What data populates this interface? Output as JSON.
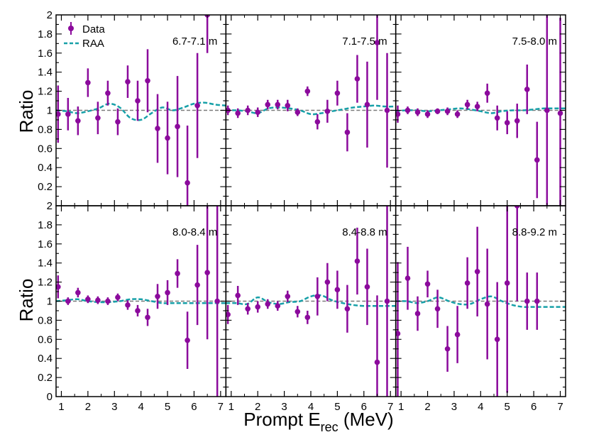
{
  "figure": {
    "ylabel": "Ratio",
    "xlabel": "Prompt E",
    "xlabel_sub": "rec",
    "xlabel_unit": " (MeV)",
    "legend": {
      "data_label": "Data",
      "model_label": "RAA"
    }
  },
  "colors": {
    "data": "#8b0a9c",
    "model": "#17a0a8",
    "reference": "#7a7a7a"
  },
  "chart_data": [
    {
      "type": "scatter",
      "title": "6.7-7.1 m",
      "xlabel": "Prompt E_rec (MeV)",
      "ylabel": "Ratio",
      "xlim": [
        0.8,
        7.2
      ],
      "ylim": [
        0,
        2
      ],
      "x": [
        0.875,
        1.25,
        1.625,
        2.0,
        2.375,
        2.75,
        3.125,
        3.5,
        3.875,
        4.25,
        4.625,
        5.0,
        5.375,
        5.75,
        6.125,
        6.5
      ],
      "series": [
        {
          "name": "Data",
          "values": [
            0.96,
            0.96,
            0.89,
            1.29,
            0.92,
            1.18,
            0.88,
            1.3,
            1.1,
            1.31,
            0.81,
            0.71,
            0.83,
            0.24,
            1.05,
            2.0
          ],
          "err": [
            0.3,
            0.17,
            0.15,
            0.15,
            0.17,
            0.13,
            0.14,
            0.17,
            0.21,
            0.33,
            0.36,
            0.38,
            0.53,
            0.6,
            0.55,
            0.4
          ]
        },
        {
          "name": "RAA",
          "x": [
            0.8,
            1.2,
            1.6,
            2.0,
            2.4,
            2.8,
            3.2,
            3.6,
            4.0,
            4.4,
            4.8,
            5.2,
            5.6,
            6.0,
            6.4,
            6.8,
            7.2
          ],
          "values": [
            1.0,
            0.99,
            0.97,
            0.99,
            1.02,
            1.07,
            1.03,
            0.92,
            0.9,
            0.97,
            1.03,
            1.0,
            1.03,
            1.07,
            1.08,
            1.06,
            1.05
          ]
        }
      ]
    },
    {
      "type": "scatter",
      "title": "7.1-7.5 m",
      "xlabel": "Prompt E_rec (MeV)",
      "ylabel": "Ratio",
      "xlim": [
        0.8,
        7.2
      ],
      "ylim": [
        0,
        2
      ],
      "x": [
        0.875,
        1.25,
        1.625,
        2.0,
        2.375,
        2.75,
        3.125,
        3.5,
        3.875,
        4.25,
        4.625,
        5.0,
        5.375,
        5.75,
        6.125,
        6.5,
        6.875
      ],
      "series": [
        {
          "name": "Data",
          "values": [
            1.0,
            0.97,
            1.0,
            0.98,
            1.06,
            1.06,
            1.05,
            0.98,
            1.2,
            0.88,
            0.99,
            1.18,
            0.77,
            1.33,
            1.06,
            1.71,
            1.0
          ],
          "err": [
            0.05,
            0.05,
            0.05,
            0.05,
            0.05,
            0.05,
            0.06,
            0.04,
            0.05,
            0.08,
            0.12,
            0.13,
            0.2,
            0.25,
            0.45,
            0.6,
            0.6
          ]
        },
        {
          "name": "RAA",
          "x": [
            0.8,
            1.2,
            1.6,
            2.0,
            2.4,
            2.8,
            3.2,
            3.6,
            4.0,
            4.4,
            4.8,
            5.2,
            5.6,
            6.0,
            6.4,
            6.8,
            7.2
          ],
          "values": [
            1.0,
            1.0,
            0.99,
            0.97,
            1.02,
            1.03,
            1.02,
            1.0,
            0.96,
            0.97,
            0.99,
            1.01,
            1.03,
            1.04,
            1.05,
            1.04,
            1.04
          ]
        }
      ]
    },
    {
      "type": "scatter",
      "title": "7.5-8.0 m",
      "xlabel": "Prompt E_rec (MeV)",
      "ylabel": "Ratio",
      "xlim": [
        0.8,
        7.2
      ],
      "ylim": [
        0,
        2
      ],
      "x": [
        0.875,
        1.25,
        1.625,
        2.0,
        2.375,
        2.75,
        3.125,
        3.5,
        3.875,
        4.25,
        4.625,
        5.0,
        5.375,
        5.75,
        6.125,
        6.5,
        7.0
      ],
      "series": [
        {
          "name": "Data",
          "values": [
            0.96,
            1.0,
            0.98,
            0.96,
            0.99,
            0.99,
            0.96,
            1.06,
            1.04,
            1.18,
            0.92,
            0.87,
            0.89,
            1.22,
            0.48,
            1.0,
            0.97
          ],
          "err": [
            0.09,
            0.04,
            0.04,
            0.04,
            0.03,
            0.04,
            0.04,
            0.05,
            0.05,
            0.1,
            0.13,
            0.12,
            0.18,
            0.26,
            0.4,
            1.0,
            1.0
          ]
        },
        {
          "name": "RAA",
          "x": [
            0.8,
            1.2,
            1.6,
            2.0,
            2.4,
            2.8,
            3.2,
            3.6,
            4.0,
            4.4,
            4.8,
            5.2,
            5.6,
            6.0,
            6.4,
            6.8,
            7.2
          ],
          "values": [
            0.99,
            1.0,
            1.0,
            0.99,
            1.0,
            1.01,
            1.02,
            1.01,
            0.99,
            0.97,
            0.99,
            1.0,
            1.0,
            1.01,
            1.02,
            1.02,
            1.02
          ]
        }
      ]
    },
    {
      "type": "scatter",
      "title": "8.0-8.4 m",
      "xlabel": "Prompt E_rec (MeV)",
      "ylabel": "Ratio",
      "xlim": [
        0.8,
        7.2
      ],
      "ylim": [
        0,
        2
      ],
      "x": [
        0.875,
        1.25,
        1.625,
        2.0,
        2.375,
        2.75,
        3.125,
        3.5,
        3.875,
        4.25,
        4.625,
        5.0,
        5.375,
        5.75,
        6.125,
        6.5,
        6.875
      ],
      "series": [
        {
          "name": "Data",
          "values": [
            1.15,
            1.0,
            1.09,
            1.02,
            1.01,
            1.0,
            1.04,
            0.96,
            0.9,
            0.83,
            1.05,
            1.09,
            1.29,
            0.59,
            1.17,
            1.3,
            1.0
          ],
          "err": [
            0.12,
            0.04,
            0.05,
            0.04,
            0.04,
            0.04,
            0.04,
            0.05,
            0.06,
            0.09,
            0.13,
            0.13,
            0.15,
            0.3,
            0.42,
            0.7,
            1.0
          ]
        },
        {
          "name": "RAA",
          "x": [
            0.8,
            1.2,
            1.6,
            2.0,
            2.4,
            2.8,
            3.2,
            3.6,
            4.0,
            4.4,
            4.8,
            5.2,
            5.6,
            6.0,
            6.4,
            6.8,
            7.2
          ],
          "values": [
            1.0,
            1.01,
            1.02,
            1.0,
            0.99,
            0.99,
            1.0,
            1.02,
            1.02,
            1.0,
            0.98,
            0.98,
            0.98,
            0.98,
            0.98,
            0.98,
            0.98
          ]
        }
      ]
    },
    {
      "type": "scatter",
      "title": "8.4-8.8 m",
      "xlabel": "Prompt E_rec (MeV)",
      "ylabel": "Ratio",
      "xlim": [
        0.8,
        7.2
      ],
      "ylim": [
        0,
        2
      ],
      "x": [
        0.875,
        1.25,
        1.625,
        2.0,
        2.375,
        2.75,
        3.125,
        3.5,
        3.875,
        4.25,
        4.625,
        5.0,
        5.375,
        5.75,
        6.125,
        6.5,
        6.875
      ],
      "series": [
        {
          "name": "Data",
          "values": [
            0.86,
            1.06,
            0.92,
            0.94,
            0.97,
            0.95,
            1.05,
            0.89,
            0.83,
            1.05,
            1.2,
            1.12,
            0.92,
            1.42,
            1.15,
            0.36,
            1.0
          ],
          "err": [
            0.1,
            0.1,
            0.06,
            0.06,
            0.05,
            0.05,
            0.06,
            0.06,
            0.07,
            0.2,
            0.2,
            0.2,
            0.25,
            0.35,
            0.4,
            0.7,
            1.0
          ]
        },
        {
          "name": "RAA",
          "x": [
            0.8,
            1.2,
            1.6,
            2.0,
            2.4,
            2.8,
            3.2,
            3.6,
            4.0,
            4.4,
            4.8,
            5.2,
            5.6,
            6.0,
            6.4,
            6.8,
            7.2
          ],
          "values": [
            0.98,
            0.98,
            0.97,
            1.04,
            0.99,
            0.97,
            0.99,
            1.0,
            1.05,
            1.06,
            1.01,
            0.98,
            0.96,
            0.95,
            0.95,
            0.95,
            0.95
          ]
        }
      ]
    },
    {
      "type": "scatter",
      "title": "8.8-9.2 m",
      "xlabel": "Prompt E_rec (MeV)",
      "ylabel": "Ratio",
      "xlim": [
        0.8,
        7.2
      ],
      "ylim": [
        0,
        2
      ],
      "x": [
        0.875,
        1.25,
        1.625,
        2.0,
        2.375,
        2.75,
        3.125,
        3.5,
        3.875,
        4.25,
        4.625,
        5.0,
        5.375,
        5.75,
        6.125
      ],
      "series": [
        {
          "name": "Data",
          "values": [
            0.66,
            1.24,
            0.87,
            1.18,
            0.92,
            0.5,
            0.65,
            1.19,
            1.31,
            0.97,
            0.6,
            1.19,
            2.0,
            1.0,
            1.0
          ],
          "err": [
            0.75,
            0.33,
            0.18,
            0.14,
            0.2,
            0.24,
            0.3,
            0.27,
            0.47,
            0.58,
            0.6,
            1.15,
            1.0,
            0.3,
            0.3
          ]
        },
        {
          "name": "RAA",
          "x": [
            0.8,
            1.2,
            1.6,
            2.0,
            2.4,
            2.8,
            3.2,
            3.6,
            4.0,
            4.4,
            4.8,
            5.2,
            5.6,
            6.0,
            6.4,
            6.8,
            7.2
          ],
          "values": [
            1.0,
            1.0,
            0.98,
            1.0,
            1.04,
            1.0,
            0.97,
            0.97,
            1.02,
            1.05,
            1.0,
            0.96,
            0.94,
            0.94,
            0.94,
            0.94,
            0.94
          ]
        }
      ]
    }
  ],
  "axes": {
    "y_ticks": [
      "0.2",
      "0.4",
      "0.6",
      "0.8",
      "1",
      "1.2",
      "1.4",
      "1.6",
      "1.8",
      "2"
    ],
    "y_tick_values": [
      0.2,
      0.4,
      0.6,
      0.8,
      1.0,
      1.2,
      1.4,
      1.6,
      1.8,
      2.0
    ],
    "y_zero_label": "0",
    "x_ticks": [
      "1",
      "2",
      "3",
      "4",
      "5",
      "6",
      "7"
    ],
    "x_tick_values": [
      1,
      2,
      3,
      4,
      5,
      6,
      7
    ]
  }
}
